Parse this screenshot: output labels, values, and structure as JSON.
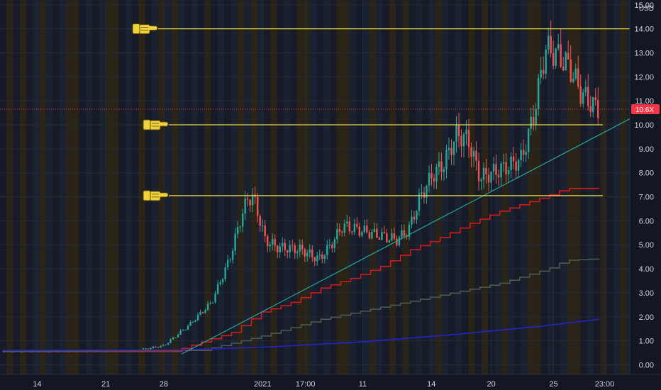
{
  "chart_data": {
    "type": "candlestick",
    "currency": "USD",
    "y_axis": {
      "range": [
        -0.4,
        15.2
      ],
      "ticks": [
        "15.00",
        "14.00",
        "13.00",
        "12.00",
        "11.00",
        "10.00",
        "9.00",
        "8.00",
        "7.00",
        "6.00",
        "5.00",
        "4.00",
        "3.00",
        "2.00",
        "1.00",
        "0.00"
      ],
      "tick_values": [
        15,
        14,
        13,
        12,
        11,
        10,
        9,
        8,
        7,
        6,
        5,
        4,
        3,
        2,
        1,
        0
      ]
    },
    "x_axis": {
      "ticks": [
        "14",
        "21",
        "28",
        "2021",
        "17:00",
        "11",
        "14",
        "20",
        "25",
        "23:00"
      ],
      "tick_positions": [
        0.059,
        0.168,
        0.26,
        0.417,
        0.485,
        0.576,
        0.685,
        0.78,
        0.879,
        0.96
      ]
    },
    "current_price": {
      "label": "10.6X",
      "value": 10.65,
      "color": "#f23645"
    },
    "horizontal_levels": [
      {
        "value": 14.0,
        "color": "#e6d84a"
      },
      {
        "value": 10.0,
        "color": "#e6d84a"
      },
      {
        "value": 7.05,
        "color": "#e6d84a"
      }
    ],
    "trendline": {
      "from": {
        "x_frac": 0.3,
        "y": 0.45
      },
      "to": {
        "x_frac": 1.0,
        "y": 10.25
      },
      "color": "#26a69a"
    },
    "series": [
      {
        "style": "candles",
        "up_color": "#26a69a",
        "down_color": "#ef5350",
        "anchors": [
          [
            0.0,
            0.55
          ],
          [
            0.22,
            0.58
          ],
          [
            0.27,
            0.8
          ],
          [
            0.31,
            1.6
          ],
          [
            0.35,
            2.6
          ],
          [
            0.38,
            4.4
          ],
          [
            0.4,
            6.2
          ],
          [
            0.41,
            6.9
          ],
          [
            0.42,
            7.0
          ],
          [
            0.44,
            5.2
          ],
          [
            0.46,
            4.9
          ],
          [
            0.5,
            4.8
          ],
          [
            0.53,
            4.4
          ],
          [
            0.55,
            5.0
          ],
          [
            0.57,
            5.8
          ],
          [
            0.6,
            5.6
          ],
          [
            0.63,
            5.4
          ],
          [
            0.66,
            5.2
          ],
          [
            0.68,
            5.6
          ],
          [
            0.7,
            7.0
          ],
          [
            0.72,
            7.9
          ],
          [
            0.74,
            8.4
          ],
          [
            0.76,
            9.6
          ],
          [
            0.78,
            9.4
          ],
          [
            0.8,
            7.8
          ],
          [
            0.83,
            8.1
          ],
          [
            0.85,
            8.3
          ],
          [
            0.87,
            8.6
          ],
          [
            0.89,
            10.4
          ],
          [
            0.91,
            13.2
          ],
          [
            0.93,
            12.9
          ],
          [
            0.95,
            12.4
          ],
          [
            0.97,
            11.3
          ],
          [
            0.99,
            10.8
          ],
          [
            1.0,
            10.65
          ]
        ]
      },
      {
        "style": "step",
        "color": "#d01b1b",
        "anchors": [
          [
            0.0,
            0.55
          ],
          [
            0.3,
            0.55
          ],
          [
            0.4,
            1.35
          ],
          [
            0.45,
            2.2
          ],
          [
            0.5,
            2.6
          ],
          [
            0.55,
            3.2
          ],
          [
            0.6,
            3.6
          ],
          [
            0.65,
            4.1
          ],
          [
            0.7,
            4.8
          ],
          [
            0.75,
            5.3
          ],
          [
            0.8,
            5.9
          ],
          [
            0.85,
            6.4
          ],
          [
            0.9,
            6.8
          ],
          [
            0.93,
            7.05
          ],
          [
            0.96,
            7.35
          ],
          [
            1.0,
            7.35
          ]
        ]
      },
      {
        "style": "step",
        "color": "#4a5a4f",
        "anchors": [
          [
            0.0,
            0.55
          ],
          [
            0.35,
            0.6
          ],
          [
            0.45,
            1.2
          ],
          [
            0.55,
            1.9
          ],
          [
            0.65,
            2.4
          ],
          [
            0.75,
            2.9
          ],
          [
            0.85,
            3.4
          ],
          [
            0.93,
            4.0
          ],
          [
            0.96,
            4.35
          ],
          [
            1.0,
            4.4
          ]
        ]
      },
      {
        "style": "line",
        "color": "#2424c8",
        "anchors": [
          [
            0.0,
            0.6
          ],
          [
            0.3,
            0.62
          ],
          [
            0.45,
            0.75
          ],
          [
            0.6,
            0.95
          ],
          [
            0.75,
            1.25
          ],
          [
            0.9,
            1.6
          ],
          [
            1.0,
            1.9
          ]
        ]
      }
    ]
  }
}
